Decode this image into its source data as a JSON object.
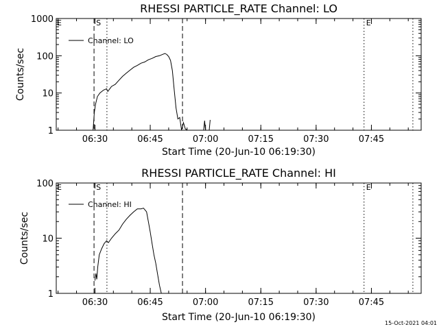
{
  "footer": {
    "timestamp": "15-Oct-2021 04:01"
  },
  "chart_data": [
    {
      "type": "line",
      "title": "RHESSI PARTICLE_RATE Channel: LO",
      "xlabel": "Start Time (20-Jun-10 06:19:30)",
      "ylabel": "Counts/sec",
      "y_scale": "log",
      "xlim": [
        "06:19:30",
        "07:58:30"
      ],
      "ylim": [
        1,
        1000
      ],
      "x_ticks": [
        "06:30",
        "06:45",
        "07:00",
        "07:15",
        "07:30",
        "07:45"
      ],
      "y_ticks": [
        "1",
        "10",
        "100",
        "1000"
      ],
      "legend": {
        "label": "Channel: LO",
        "position": "top-left"
      },
      "markers": [
        {
          "label": "S",
          "time": "06:29:45",
          "style": "dashed"
        },
        {
          "label": "",
          "time": "06:33:15",
          "style": "dotted"
        },
        {
          "label": "",
          "time": "06:53:45",
          "style": "dashed"
        },
        {
          "label": "E",
          "time": "07:43:00",
          "style": "dotted"
        },
        {
          "label": "",
          "time": "07:56:15",
          "style": "dotted"
        }
      ],
      "series": [
        {
          "name": "Channel: LO",
          "x": [
            "06:29:30",
            "06:29:50",
            "06:30:10",
            "06:30:40",
            "06:31:20",
            "06:32:20",
            "06:33:10",
            "06:33:30",
            "06:34:30",
            "06:35:30",
            "06:36:30",
            "06:37:30",
            "06:38:30",
            "06:39:30",
            "06:40:30",
            "06:41:30",
            "06:42:30",
            "06:43:30",
            "06:44:30",
            "06:45:30",
            "06:46:30",
            "06:47:30",
            "06:48:30",
            "06:49:00",
            "06:49:30",
            "06:50:00",
            "06:50:30",
            "06:51:00",
            "06:51:30",
            "06:52:00",
            "06:52:30",
            "06:53:00",
            "06:53:30",
            "06:54:00",
            "06:54:30",
            "06:55:00"
          ],
          "y": [
            1,
            3,
            5,
            8,
            10,
            12,
            13,
            11,
            15,
            17,
            22,
            28,
            34,
            41,
            49,
            55,
            63,
            68,
            78,
            85,
            95,
            100,
            110,
            115,
            108,
            95,
            75,
            40,
            12,
            4,
            2,
            2.2,
            1,
            1.6,
            1.1,
            1
          ],
          "gap_after_x": "06:55:00",
          "extra_segments": [
            {
              "x": [
                "06:59:30",
                "06:59:45",
                "07:00:00"
              ],
              "y": [
                1,
                1.8,
                1
              ]
            },
            {
              "x": [
                "07:01:00",
                "07:01:15"
              ],
              "y": [
                1,
                1.9
              ]
            }
          ]
        }
      ]
    },
    {
      "type": "line",
      "title": "RHESSI PARTICLE_RATE Channel: HI",
      "xlabel": "Start Time (20-Jun-10 06:19:30)",
      "ylabel": "Counts/sec",
      "y_scale": "log",
      "xlim": [
        "06:19:30",
        "07:58:30"
      ],
      "ylim": [
        1,
        100
      ],
      "x_ticks": [
        "06:30",
        "06:45",
        "07:00",
        "07:15",
        "07:30",
        "07:45"
      ],
      "y_ticks": [
        "1",
        "10",
        "100"
      ],
      "legend": {
        "label": "Channel: HI",
        "position": "top-left"
      },
      "markers": [
        {
          "label": "S",
          "time": "06:29:45",
          "style": "dashed"
        },
        {
          "label": "",
          "time": "06:33:15",
          "style": "dotted"
        },
        {
          "label": "",
          "time": "06:53:45",
          "style": "dashed"
        },
        {
          "label": "E",
          "time": "07:43:00",
          "style": "dotted"
        },
        {
          "label": "",
          "time": "07:56:15",
          "style": "dotted"
        }
      ],
      "series": [
        {
          "name": "Channel: HI",
          "x": [
            "06:30:00",
            "06:30:15",
            "06:30:30",
            "06:30:45",
            "06:31:10",
            "06:31:50",
            "06:32:30",
            "06:33:10",
            "06:33:40",
            "06:34:30",
            "06:35:30",
            "06:36:30",
            "06:37:30",
            "06:38:30",
            "06:39:30",
            "06:40:30",
            "06:41:30",
            "06:42:30",
            "06:43:10",
            "06:43:30",
            "06:44:00",
            "06:44:30",
            "06:45:00",
            "06:45:30",
            "06:46:00",
            "06:46:30",
            "06:47:00",
            "06:47:30",
            "06:48:00"
          ],
          "y": [
            1.7,
            2.3,
            1.8,
            3,
            5,
            6.5,
            8,
            9,
            8.3,
            10,
            12,
            14,
            18,
            22,
            26,
            30,
            34,
            34,
            35,
            33,
            30,
            20,
            13,
            8,
            5,
            3.5,
            2.2,
            1.4,
            1
          ]
        }
      ]
    }
  ]
}
